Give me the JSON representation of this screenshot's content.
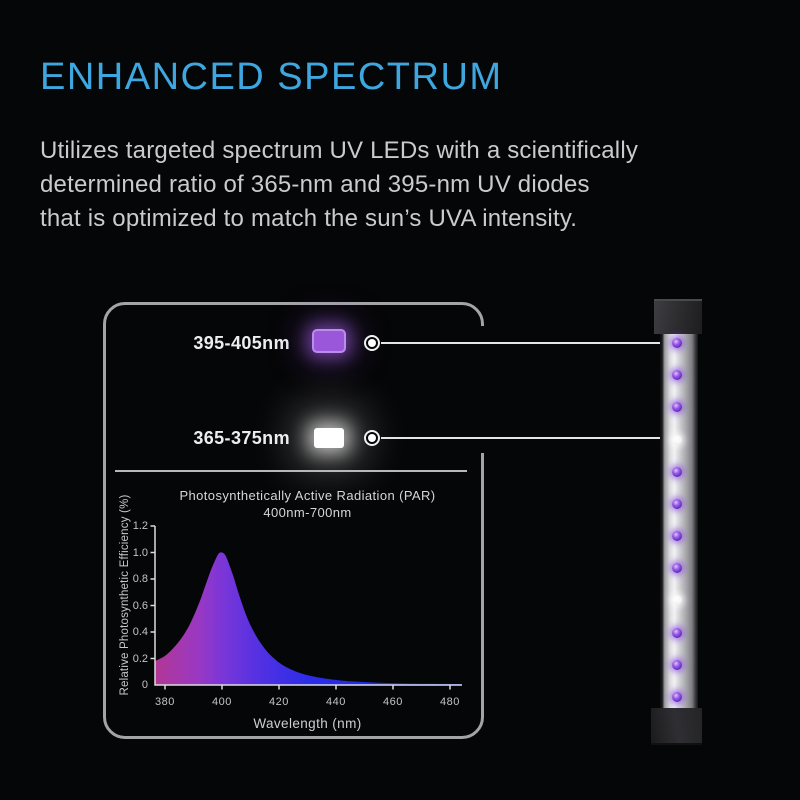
{
  "page": {
    "background": "#050607"
  },
  "header": {
    "title": "ENHANCED SPECTRUM",
    "accent_color": "#3fa7e0"
  },
  "description": {
    "lines": [
      "Utilizes targeted spectrum UV LEDs with a scientifically",
      "determined ratio of 365-nm and 395-nm UV diodes",
      "that is optimized to match the sun’s UVA intensity."
    ]
  },
  "legend": {
    "items": [
      {
        "label": "395-405nm",
        "swatch_color": "#9a57da",
        "led": "uv-395nm-purple"
      },
      {
        "label": "365-375nm",
        "swatch_color": "#ffffff",
        "led": "uv-365nm-white"
      }
    ]
  },
  "chart_data": {
    "type": "area",
    "title": "Photosynthetically Active Radiation (PAR)",
    "subtitle": "400nm-700nm",
    "xlabel": "Wavelength (nm)",
    "ylabel": "Relative Photosynthetic Efficiency (%)",
    "xlim": [
      376.5,
      484
    ],
    "ylim": [
      0,
      1.2
    ],
    "xticks": [
      380,
      400,
      420,
      440,
      460,
      480
    ],
    "yticks": [
      "0",
      "0.2",
      "0.4",
      "0.6",
      "0.8",
      "1.0",
      "1.2"
    ],
    "grid": false,
    "legend_position": "none",
    "peak": {
      "x": 400,
      "y": 1.0
    },
    "x": [
      376.5,
      380,
      383,
      386,
      389,
      392,
      394,
      396,
      398,
      399,
      400,
      401,
      402,
      404,
      406,
      409,
      412,
      415,
      418,
      421,
      425,
      429,
      433,
      437,
      441,
      446,
      452,
      458,
      465,
      472,
      484
    ],
    "y": [
      0.18,
      0.22,
      0.28,
      0.36,
      0.47,
      0.62,
      0.74,
      0.86,
      0.96,
      0.995,
      1.0,
      0.985,
      0.94,
      0.82,
      0.68,
      0.5,
      0.37,
      0.275,
      0.205,
      0.155,
      0.11,
      0.08,
      0.06,
      0.046,
      0.036,
      0.027,
      0.02,
      0.015,
      0.011,
      0.009,
      0.007
    ],
    "gradient": [
      {
        "offset": 0.0,
        "color": "#b23795"
      },
      {
        "offset": 0.14,
        "color": "#9a38c2"
      },
      {
        "offset": 0.22,
        "color": "#7b36d8"
      },
      {
        "offset": 0.34,
        "color": "#5331e2"
      },
      {
        "offset": 0.5,
        "color": "#2c2de8"
      },
      {
        "offset": 1.0,
        "color": "#1026e4"
      }
    ],
    "axis_color": "#dcdcdc"
  },
  "led_bar": {
    "leds": [
      "purple",
      "purple",
      "purple",
      "white",
      "purple",
      "purple",
      "purple",
      "purple",
      "white",
      "purple",
      "purple",
      "purple"
    ],
    "purple_color": "#8a4ae0",
    "white_color": "#ffffff"
  }
}
